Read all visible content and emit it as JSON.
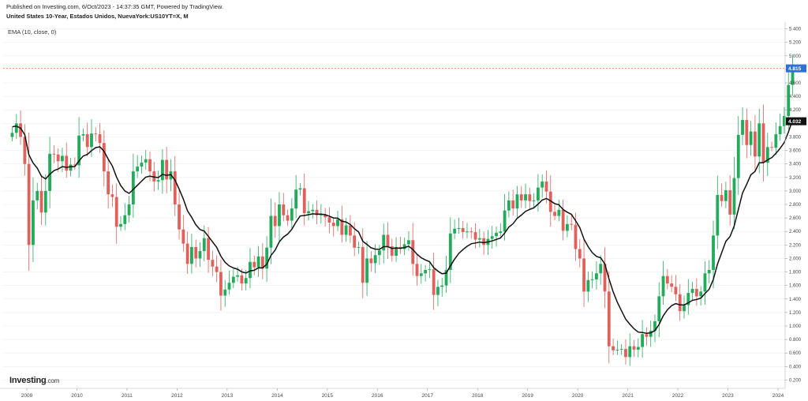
{
  "header": {
    "published": "Published on Investing.com, 6/Oct/2023 - 14:37:35 GMT, Powered by TradingView.",
    "symbol": "United States 10-Year, Estados Unidos, NuevaYork:US10YT=X, M",
    "indicator": "EMA (10, close, 0)"
  },
  "logo": {
    "name": "Investing",
    "suffix": ".com"
  },
  "colors": {
    "up": "#22ab5a",
    "down": "#e0605c",
    "ema": "#111111",
    "last_price_line": "#e07a30",
    "grid": "#eeeeee"
  },
  "chart_data": {
    "type": "candlestick",
    "x_ticks": [
      "2009",
      "2010",
      "2011",
      "2012",
      "2013",
      "2014",
      "2015",
      "2016",
      "2017",
      "2018",
      "2019",
      "2020",
      "2021",
      "2022",
      "2023",
      "2024"
    ],
    "y_ticks": [
      "0.200",
      "0.400",
      "0.600",
      "0.800",
      "1.000",
      "1.200",
      "1.400",
      "1.600",
      "1.800",
      "2.000",
      "2.200",
      "2.400",
      "2.600",
      "2.800",
      "3.000",
      "3.200",
      "3.400",
      "3.600",
      "3.800",
      "4.000",
      "4.200",
      "4.400",
      "4.600",
      "4.800",
      "5.000",
      "5.200",
      "5.400"
    ],
    "ylim": [
      0.1,
      5.5
    ],
    "last_price": {
      "label": "4.815",
      "value": 4.815
    },
    "ema_last": {
      "label": "4.032",
      "value": 4.032
    },
    "start_month": "2008-09",
    "close": [
      3.86,
      4.0,
      3.8,
      3.4,
      2.2,
      2.86,
      3.0,
      2.68,
      3.0,
      3.55,
      3.54,
      3.44,
      3.52,
      3.3,
      3.39,
      3.38,
      3.82,
      3.84,
      3.65,
      3.85,
      3.84,
      3.71,
      3.29,
      2.95,
      2.91,
      2.47,
      2.51,
      2.64,
      2.8,
      3.29,
      3.36,
      3.42,
      3.47,
      3.29,
      3.14,
      3.16,
      3.46,
      3.17,
      3.29,
      2.8,
      2.43,
      2.22,
      1.92,
      2.17,
      2.0,
      2.11,
      2.3,
      1.98,
      1.88,
      1.8,
      1.45,
      1.54,
      1.64,
      1.73,
      1.75,
      1.63,
      1.71,
      1.95,
      1.87,
      2.03,
      1.85,
      2.16,
      2.63,
      2.48,
      2.8,
      2.64,
      2.56,
      2.74,
      3.02,
      3.04,
      2.67,
      2.7,
      2.72,
      2.64,
      2.65,
      2.61,
      2.53,
      2.48,
      2.58,
      2.35,
      2.49,
      2.34,
      2.16,
      2.17,
      1.64,
      2.0,
      1.93,
      2.05,
      2.12,
      2.35,
      2.18,
      2.04,
      2.17,
      2.14,
      2.21,
      2.27,
      1.92,
      1.74,
      1.78,
      1.83,
      1.84,
      1.46,
      1.58,
      1.6,
      1.83,
      2.37,
      2.44,
      2.45,
      2.39,
      2.4,
      2.39,
      2.28,
      2.3,
      2.2,
      2.29,
      2.33,
      2.38,
      2.4,
      2.71,
      2.86,
      2.74,
      2.95,
      2.86,
      2.95,
      2.85,
      2.86,
      3.05,
      3.14,
      2.99,
      2.69,
      2.63,
      2.72,
      2.41,
      2.51,
      2.5,
      2.14,
      2.0,
      1.51,
      1.68,
      1.69,
      1.78,
      1.92,
      1.51,
      0.7,
      0.64,
      0.65,
      0.66,
      0.54,
      0.7,
      0.65,
      0.69,
      0.88,
      0.84,
      0.93,
      1.07,
      1.44,
      1.74,
      1.63,
      1.58,
      1.47,
      1.22,
      1.31,
      1.49,
      1.55,
      1.44,
      1.51,
      1.78,
      1.83,
      2.34,
      2.94,
      2.85,
      3.01,
      2.65,
      3.19,
      3.83,
      4.05,
      3.68,
      3.88,
      3.51,
      4.0,
      3.42,
      3.65,
      3.64,
      3.84,
      3.96,
      4.11,
      4.57,
      4.87
    ]
  }
}
